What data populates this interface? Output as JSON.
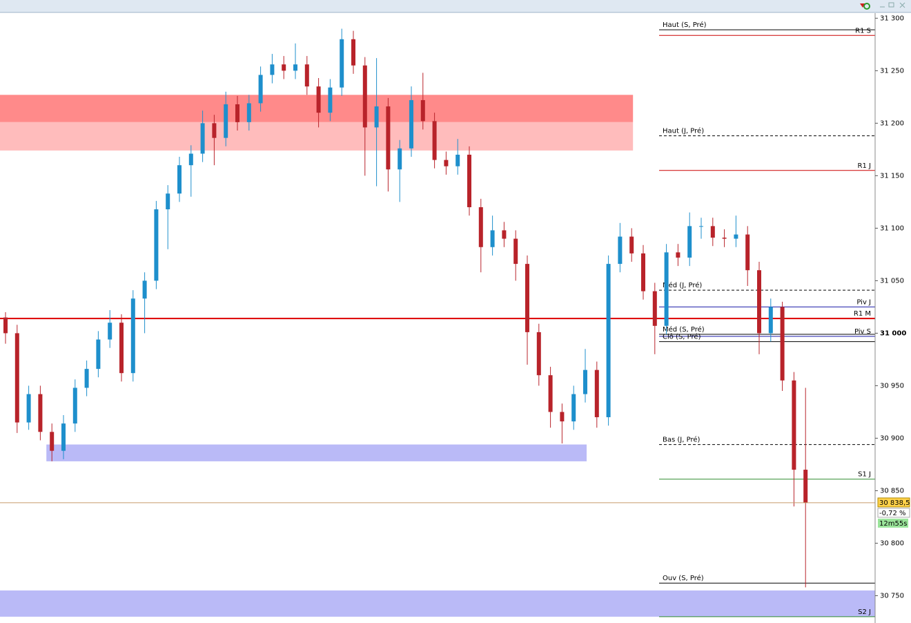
{
  "chart_data": {
    "type": "candlestick",
    "ylim": [
      30724,
      31305.5
    ],
    "yticks": [
      {
        "value": 30750,
        "label": "30 750"
      },
      {
        "value": 30800,
        "label": "30 800"
      },
      {
        "value": 30850,
        "label": "30 850"
      },
      {
        "value": 30900,
        "label": "30 900"
      },
      {
        "value": 30950,
        "label": "30 950"
      },
      {
        "value": 31000,
        "label": "31 000"
      },
      {
        "value": 31050,
        "label": "31 050"
      },
      {
        "value": 31100,
        "label": "31 100"
      },
      {
        "value": 31150,
        "label": "31 150"
      },
      {
        "value": 31200,
        "label": "31 200"
      },
      {
        "value": 31250,
        "label": "31 250"
      },
      {
        "value": 31300,
        "label": "31 300"
      }
    ],
    "up_color": "#1e8fcc",
    "down_color": "#b8232a",
    "candles": [
      [
        31015,
        31020,
        30990,
        31000
      ],
      [
        31000,
        31008,
        30905,
        30915
      ],
      [
        30915,
        30950,
        30908,
        30942
      ],
      [
        30942,
        30950,
        30898,
        30906
      ],
      [
        30906,
        30914,
        30878,
        30888
      ],
      [
        30888,
        30922,
        30880,
        30914
      ],
      [
        30914,
        30956,
        30906,
        30948
      ],
      [
        30948,
        30974,
        30940,
        30966
      ],
      [
        30966,
        31002,
        30958,
        30994
      ],
      [
        30994,
        31022,
        30986,
        31010
      ],
      [
        31010,
        31018,
        30954,
        30962
      ],
      [
        30962,
        31041,
        30954,
        31033
      ],
      [
        31033,
        31058,
        31000,
        31050
      ],
      [
        31050,
        31126,
        31042,
        31118
      ],
      [
        31118,
        31141,
        31080,
        31133
      ],
      [
        31133,
        31168,
        31125,
        31160
      ],
      [
        31160,
        31179,
        31130,
        31171
      ],
      [
        31171,
        31212,
        31163,
        31200
      ],
      [
        31200,
        31208,
        31160,
        31186
      ],
      [
        31186,
        31230,
        31178,
        31218
      ],
      [
        31218,
        31226,
        31193,
        31201
      ],
      [
        31201,
        31227,
        31193,
        31219
      ],
      [
        31219,
        31254,
        31211,
        31246
      ],
      [
        31246,
        31266,
        31238,
        31256
      ],
      [
        31256,
        31264,
        31242,
        31250
      ],
      [
        31250,
        31276,
        31242,
        31256
      ],
      [
        31256,
        31264,
        31227,
        31235
      ],
      [
        31235,
        31243,
        31196,
        31210
      ],
      [
        31210,
        31242,
        31202,
        31234
      ],
      [
        31234,
        31290,
        31226,
        31280
      ],
      [
        31280,
        31288,
        31247,
        31255
      ],
      [
        31255,
        31263,
        31150,
        31196
      ],
      [
        31196,
        31262,
        31140,
        31216
      ],
      [
        31216,
        31224,
        31135,
        31156
      ],
      [
        31156,
        31184,
        31125,
        31176
      ],
      [
        31176,
        31235,
        31168,
        31222
      ],
      [
        31222,
        31248,
        31194,
        31202
      ],
      [
        31202,
        31210,
        31157,
        31165
      ],
      [
        31165,
        31173,
        31151,
        31159
      ],
      [
        31159,
        31185,
        31151,
        31170
      ],
      [
        31170,
        31178,
        31112,
        31120
      ],
      [
        31120,
        31128,
        31058,
        31082
      ],
      [
        31082,
        31112,
        31074,
        31098
      ],
      [
        31098,
        31106,
        31082,
        31090
      ],
      [
        31090,
        31098,
        31050,
        31066
      ],
      [
        31066,
        31074,
        30970,
        31001
      ],
      [
        31001,
        31009,
        30950,
        30960
      ],
      [
        30960,
        30968,
        30910,
        30925
      ],
      [
        30925,
        30933,
        30895,
        30916
      ],
      [
        30916,
        30950,
        30908,
        30942
      ],
      [
        30942,
        30985,
        30934,
        30965
      ],
      [
        30965,
        30973,
        30910,
        30920
      ],
      [
        30920,
        31074,
        30912,
        31066
      ],
      [
        31066,
        31105,
        31058,
        31092
      ],
      [
        31092,
        31100,
        31068,
        31076
      ],
      [
        31076,
        31084,
        31032,
        31040
      ],
      [
        31040,
        31048,
        30980,
        31007
      ],
      [
        31007,
        31085,
        30999,
        31077
      ],
      [
        31077,
        31085,
        31064,
        31072
      ],
      [
        31072,
        31115,
        31064,
        31102
      ],
      [
        31102,
        31110,
        31090,
        31102
      ],
      [
        31102,
        31110,
        31083,
        31091
      ],
      [
        31091,
        31099,
        31082,
        31090
      ],
      [
        31090,
        31112,
        31082,
        31094
      ],
      [
        31094,
        31102,
        31045,
        31060
      ],
      [
        31060,
        31068,
        30980,
        31000
      ],
      [
        31000,
        31033,
        30992,
        31025
      ],
      [
        31025,
        31030,
        30945,
        30955
      ],
      [
        30955,
        30963,
        30835,
        30870
      ],
      [
        30870,
        30948,
        30758,
        30838.5
      ]
    ],
    "zones": [
      {
        "from": 31201,
        "to": 31227,
        "start": 0,
        "end": 54,
        "color": "#ff8a8a",
        "extend_right": false
      },
      {
        "from": 31174,
        "to": 31201,
        "start": 0,
        "end": 54,
        "color": "#ffbcbc",
        "extend_right": false
      },
      {
        "from": 30878,
        "to": 30894,
        "start": 4,
        "end": 50,
        "color": "#babaf7",
        "extend_right": false
      },
      {
        "from": 30730,
        "to": 30755,
        "start": 0,
        "end": 69,
        "color": "#babaf7",
        "extend_right": true
      }
    ],
    "levels": [
      {
        "label": "Haut (S, Pré)",
        "value": 31289,
        "color": "#000000",
        "style": "solid",
        "label_side": "left",
        "full_width": false
      },
      {
        "label": "R1 S",
        "value": 31283.6,
        "color": "#cc0000",
        "style": "solid",
        "label_side": "right",
        "full_width": false
      },
      {
        "label": "Haut (J, Pré)",
        "value": 31188,
        "color": "#000000",
        "style": "dashed",
        "label_side": "left",
        "full_width": false
      },
      {
        "label": "R1 J",
        "value": 31155,
        "color": "#cc0000",
        "style": "solid",
        "label_side": "right",
        "full_width": false
      },
      {
        "label": "Méd (J, Pré)",
        "value": 31041,
        "color": "#000000",
        "style": "dashed",
        "label_side": "left",
        "full_width": false
      },
      {
        "label": "Piv J",
        "value": 31025,
        "color": "#1a1aa8",
        "style": "solid",
        "label_side": "right",
        "full_width": false
      },
      {
        "label": "R1 M",
        "value": 31014,
        "color": "#dd0000",
        "style": "thick",
        "label_side": "right",
        "full_width": true
      },
      {
        "label": "Méd (S, Pré)",
        "value": 30999,
        "color": "#000000",
        "style": "solid",
        "label_side": "left",
        "full_width": false
      },
      {
        "label": "Piv S",
        "value": 30997,
        "color": "#1a1aa8",
        "style": "solid",
        "label_side": "right",
        "full_width": false
      },
      {
        "label": "Clô (S, Pré)",
        "value": 30992,
        "color": "#000000",
        "style": "solid",
        "label_side": "left",
        "full_width": false
      },
      {
        "label": "Bas (J, Pré)",
        "value": 30894,
        "color": "#000000",
        "style": "dashed",
        "label_side": "left",
        "full_width": false
      },
      {
        "label": "S1 J",
        "value": 30861,
        "color": "#2e8b2e",
        "style": "solid",
        "label_side": "right",
        "full_width": false
      },
      {
        "label": "Ouv (S, Pré)",
        "value": 30762,
        "color": "#000000",
        "style": "solid",
        "label_side": "left",
        "full_width": false
      },
      {
        "label": "S2 J",
        "value": 30730,
        "color": "#2e8b2e",
        "style": "solid",
        "label_side": "right",
        "full_width": false
      }
    ],
    "last_price": {
      "value": 30838.5,
      "label": "30 838,5"
    },
    "change_label": "-0,72 %",
    "timer": "12m55s"
  }
}
